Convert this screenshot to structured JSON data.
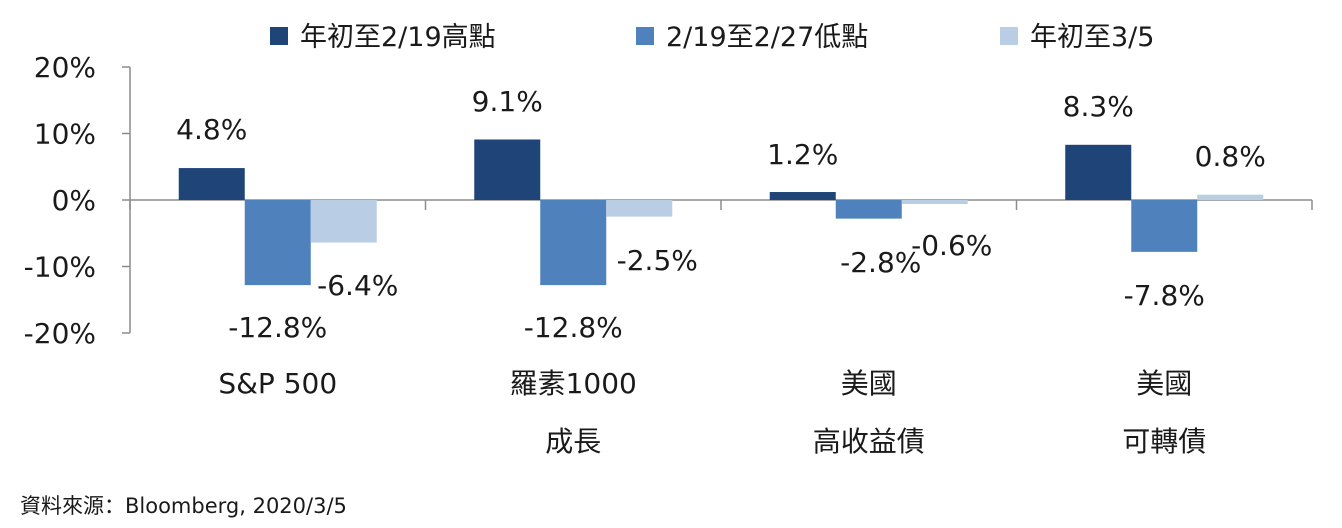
{
  "chart_data": {
    "type": "bar",
    "categories": [
      [
        "S&P 500"
      ],
      [
        "羅素1000",
        "成長"
      ],
      [
        "美國",
        "高收益債"
      ],
      [
        "美國",
        "可轉債"
      ]
    ],
    "series": [
      {
        "name": "年初至2/19高點",
        "color": "#1f4478",
        "values": [
          4.8,
          9.1,
          1.2,
          8.3
        ]
      },
      {
        "name": "2/19至2/27低點",
        "color": "#4f81bd",
        "values": [
          -12.8,
          -12.8,
          -2.8,
          -7.8
        ]
      },
      {
        "name": "年初至3/5",
        "color": "#b9cde5",
        "values": [
          -6.4,
          -2.5,
          -0.6,
          0.8
        ]
      }
    ],
    "data_labels": [
      [
        "4.8%",
        "9.1%",
        "1.2%",
        "8.3%"
      ],
      [
        "-12.8%",
        "-12.8%",
        "-2.8%",
        "-7.8%"
      ],
      [
        "-6.4%",
        "-2.5%",
        "-0.6%",
        "0.8%"
      ]
    ],
    "ylim": [
      -20,
      20
    ],
    "yticks": [
      20,
      10,
      0,
      -10,
      -20
    ],
    "ytick_labels": [
      "20%",
      "10%",
      "0%",
      "-10%",
      "-20%"
    ],
    "legend_position": "top",
    "grid": false
  },
  "source_note": "資料來源：Bloomberg, 2020/3/5"
}
